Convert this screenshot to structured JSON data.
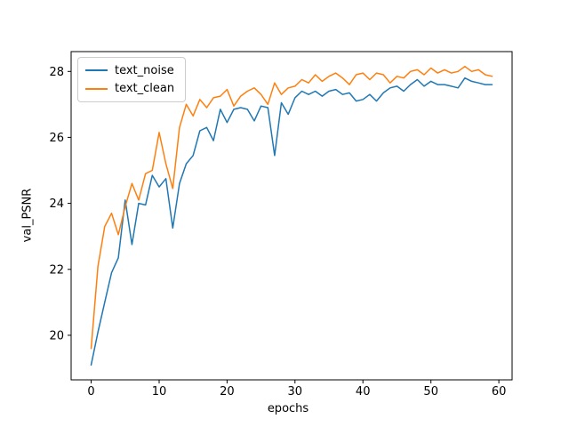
{
  "figure": {
    "background": "#ffffff",
    "xlabel": "epochs",
    "ylabel": "val_PSNR"
  },
  "legend": {
    "position": "upper left",
    "items": [
      {
        "label": "text_noise",
        "color": "#1f77b4"
      },
      {
        "label": "text_clean",
        "color": "#ff7f0e"
      }
    ]
  },
  "chart_data": {
    "type": "line",
    "title": "",
    "xlabel": "epochs",
    "ylabel": "val_PSNR",
    "grid": false,
    "legend_position": "upper left",
    "xlim": [
      -2.95,
      61.95
    ],
    "ylim": [
      18.65,
      28.6
    ],
    "xticks": [
      0,
      10,
      20,
      30,
      40,
      50,
      60
    ],
    "yticks": [
      20,
      22,
      24,
      26,
      28
    ],
    "x": [
      0,
      1,
      2,
      3,
      4,
      5,
      6,
      7,
      8,
      9,
      10,
      11,
      12,
      13,
      14,
      15,
      16,
      17,
      18,
      19,
      20,
      21,
      22,
      23,
      24,
      25,
      26,
      27,
      28,
      29,
      30,
      31,
      32,
      33,
      34,
      35,
      36,
      37,
      38,
      39,
      40,
      41,
      42,
      43,
      44,
      45,
      46,
      47,
      48,
      49,
      50,
      51,
      52,
      53,
      54,
      55,
      56,
      57,
      58,
      59
    ],
    "series": [
      {
        "name": "text_noise",
        "color": "#1f77b4",
        "values": [
          19.1,
          20.1,
          21.0,
          21.9,
          22.35,
          24.1,
          22.75,
          24.0,
          23.95,
          24.85,
          24.5,
          24.75,
          23.25,
          24.6,
          25.2,
          25.45,
          26.2,
          26.3,
          25.9,
          26.85,
          26.45,
          26.85,
          26.9,
          26.85,
          26.5,
          26.95,
          26.9,
          25.45,
          27.05,
          26.7,
          27.2,
          27.4,
          27.3,
          27.4,
          27.25,
          27.4,
          27.45,
          27.3,
          27.35,
          27.1,
          27.15,
          27.3,
          27.1,
          27.35,
          27.5,
          27.55,
          27.4,
          27.6,
          27.75,
          27.55,
          27.7,
          27.6,
          27.6,
          27.55,
          27.5,
          27.8,
          27.7,
          27.65,
          27.6,
          27.6
        ]
      },
      {
        "name": "text_clean",
        "color": "#ff7f0e",
        "values": [
          19.6,
          22.1,
          23.3,
          23.7,
          23.05,
          23.9,
          24.6,
          24.1,
          24.9,
          25.0,
          26.15,
          25.2,
          24.45,
          26.3,
          27.0,
          26.65,
          27.15,
          26.9,
          27.2,
          27.25,
          27.45,
          26.95,
          27.25,
          27.4,
          27.5,
          27.3,
          27.0,
          27.65,
          27.3,
          27.5,
          27.55,
          27.75,
          27.65,
          27.9,
          27.7,
          27.85,
          27.95,
          27.8,
          27.6,
          27.9,
          27.95,
          27.75,
          27.95,
          27.9,
          27.65,
          27.85,
          27.8,
          28.0,
          28.05,
          27.9,
          28.1,
          27.95,
          28.05,
          27.95,
          28.0,
          28.15,
          28.0,
          28.05,
          27.9,
          27.85
        ]
      }
    ]
  }
}
